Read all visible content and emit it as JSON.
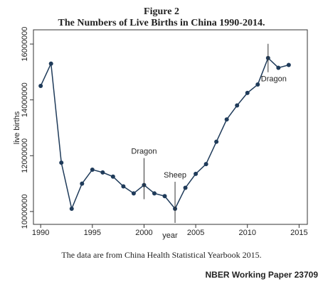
{
  "chart_data": {
    "type": "line",
    "figure_label": "Figure 2",
    "title": "The Numbers of Live Births in China 1990-2014.",
    "ylabel": "live births",
    "xlabel": "year",
    "note": "The data are from China Health Statistical Yearbook 2015.",
    "source": "NBER Working Paper 23709",
    "x": [
      1990,
      1991,
      1992,
      1993,
      1994,
      1995,
      1996,
      1997,
      1998,
      1999,
      2000,
      2001,
      2002,
      2003,
      2004,
      2005,
      2006,
      2007,
      2008,
      2009,
      2010,
      2011,
      2012,
      2013,
      2014
    ],
    "series": [
      {
        "name": "live births",
        "color": "#1f3b5a",
        "values": [
          14500000,
          15300000,
          11750000,
          10100000,
          11000000,
          11500000,
          11400000,
          11250000,
          10900000,
          10650000,
          10950000,
          10650000,
          10550000,
          10100000,
          10850000,
          11350000,
          11700000,
          12500000,
          13300000,
          13800000,
          14250000,
          14550000,
          15500000,
          15150000,
          15250000
        ]
      }
    ],
    "xlim": [
      1989.3,
      2015.8
    ],
    "xticks": [
      1990,
      1995,
      2000,
      2005,
      2010,
      2015
    ],
    "ylim": [
      9540000,
      16510000
    ],
    "yticks": [
      10000000,
      12000000,
      14000000,
      16000000
    ],
    "grid": false,
    "annotations": [
      {
        "text": "Dragon",
        "x": 2000
      },
      {
        "text": "Sheep",
        "x": 2003
      },
      {
        "text": "Dragon",
        "x": 2012
      }
    ]
  }
}
